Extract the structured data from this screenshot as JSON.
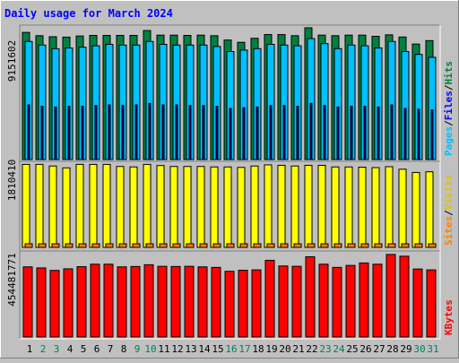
{
  "chart_data": [
    {
      "type": "bar",
      "title": "Daily usage for March 2024",
      "panel": "pages-files-hits",
      "axis_value_label": "9151602",
      "legend": [
        "Pages",
        "Files",
        "Hits"
      ],
      "legend_separator": "/",
      "colors": {
        "Pages": "#00008b",
        "Files": "#00c0ff",
        "Hits": "#008040"
      },
      "categories": [
        "1",
        "2",
        "3",
        "4",
        "5",
        "6",
        "7",
        "8",
        "9",
        "10",
        "11",
        "12",
        "13",
        "14",
        "15",
        "16",
        "17",
        "18",
        "19",
        "20",
        "21",
        "22",
        "23",
        "24",
        "25",
        "26",
        "27",
        "28",
        "29",
        "30",
        "31"
      ],
      "weekend_days": [
        "2",
        "3",
        "9",
        "10",
        "16",
        "17",
        "23",
        "24",
        "30",
        "31"
      ],
      "series": [
        {
          "name": "Hits",
          "values": [
            8830000,
            8600000,
            8530000,
            8500000,
            8580000,
            8620000,
            8620000,
            8620000,
            8620000,
            8960000,
            8640000,
            8640000,
            8620000,
            8640000,
            8600000,
            8300000,
            8140000,
            8420000,
            8680000,
            8680000,
            8600000,
            9150000,
            8640000,
            8600000,
            8640000,
            8640000,
            8560000,
            8660000,
            8510000,
            8020000,
            8260000
          ]
        },
        {
          "name": "Files",
          "values": [
            8200000,
            7950000,
            7700000,
            7750000,
            7800000,
            7900000,
            8000000,
            7950000,
            7950000,
            8200000,
            8000000,
            7950000,
            7950000,
            7950000,
            7850000,
            7500000,
            7600000,
            7700000,
            8000000,
            7950000,
            7900000,
            8400000,
            8050000,
            7700000,
            7950000,
            7900000,
            7750000,
            8200000,
            7500000,
            7300000,
            7100000
          ]
        },
        {
          "name": "Pages",
          "values": [
            3800000,
            3700000,
            3650000,
            3700000,
            3700000,
            3750000,
            3800000,
            3750000,
            3800000,
            3900000,
            3800000,
            3800000,
            3750000,
            3750000,
            3700000,
            3550000,
            3600000,
            3650000,
            3750000,
            3750000,
            3700000,
            3900000,
            3750000,
            3650000,
            3700000,
            3700000,
            3650000,
            3800000,
            3550000,
            3500000,
            3450000
          ]
        }
      ]
    },
    {
      "type": "bar",
      "panel": "visits-sites",
      "axis_value_label": "1810410",
      "legend": [
        "Sites",
        "Visits"
      ],
      "legend_separator": "/",
      "colors": {
        "Visits": "#ffff00",
        "Sites": "#ff8000"
      },
      "series": [
        {
          "name": "Visits",
          "values": [
            1795000,
            1795000,
            1760000,
            1720000,
            1795000,
            1795000,
            1795000,
            1750000,
            1740000,
            1795000,
            1770000,
            1750000,
            1750000,
            1750000,
            1740000,
            1740000,
            1730000,
            1760000,
            1785000,
            1775000,
            1760000,
            1775000,
            1775000,
            1740000,
            1740000,
            1735000,
            1725000,
            1745000,
            1690000,
            1620000,
            1635000
          ]
        },
        {
          "name": "Sites",
          "values": [
            80000,
            80000,
            80000,
            80000,
            80000,
            80000,
            80000,
            80000,
            80000,
            80000,
            80000,
            80000,
            80000,
            80000,
            80000,
            80000,
            80000,
            80000,
            80000,
            80000,
            80000,
            80000,
            80000,
            80000,
            80000,
            80000,
            80000,
            80000,
            80000,
            80000,
            80000
          ]
        }
      ]
    },
    {
      "type": "bar",
      "panel": "kbytes",
      "axis_value_label": "454481771",
      "legend": [
        "KBytes"
      ],
      "colors": {
        "KBytes": "#ff0000"
      },
      "series": [
        {
          "name": "KBytes",
          "values": [
            395000000,
            389000000,
            375000000,
            384000000,
            396000000,
            410000000,
            410000000,
            395000000,
            397000000,
            407000000,
            398000000,
            397000000,
            398000000,
            395000000,
            392000000,
            370000000,
            376000000,
            378000000,
            432000000,
            400000000,
            398000000,
            452000000,
            410000000,
            392000000,
            403000000,
            417000000,
            410000000,
            465000000,
            455000000,
            383000000,
            378000000
          ]
        }
      ]
    }
  ]
}
